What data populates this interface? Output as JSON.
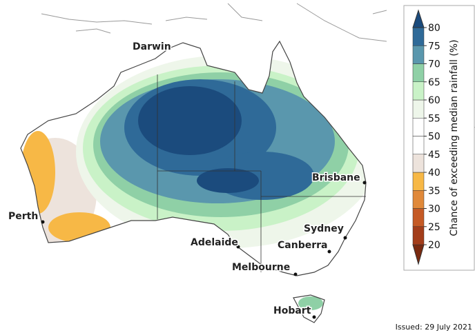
{
  "cities": [
    {
      "label": "Darwin"
    },
    {
      "label": "Brisbane"
    },
    {
      "label": "Perth"
    },
    {
      "label": "Sydney"
    },
    {
      "label": "Adelaide"
    },
    {
      "label": "Canberra"
    },
    {
      "label": "Melbourne"
    },
    {
      "label": "Hobart"
    }
  ],
  "colorbar": {
    "label": "Chance of exceeding median rainfall (%)",
    "ticks": [
      20,
      25,
      30,
      35,
      40,
      45,
      50,
      55,
      60,
      65,
      70,
      75,
      80
    ],
    "colors": [
      "#7a2a10",
      "#a33d1a",
      "#c55a25",
      "#e0893a",
      "#f7b846",
      "#ede3dc",
      "#ffffff",
      "#ffffff",
      "#eef6ea",
      "#c9f2c7",
      "#8fd0a6",
      "#5a97ad",
      "#2f6a98",
      "#1b4b7d"
    ]
  },
  "issued": "Issued: 29 July 2021"
}
